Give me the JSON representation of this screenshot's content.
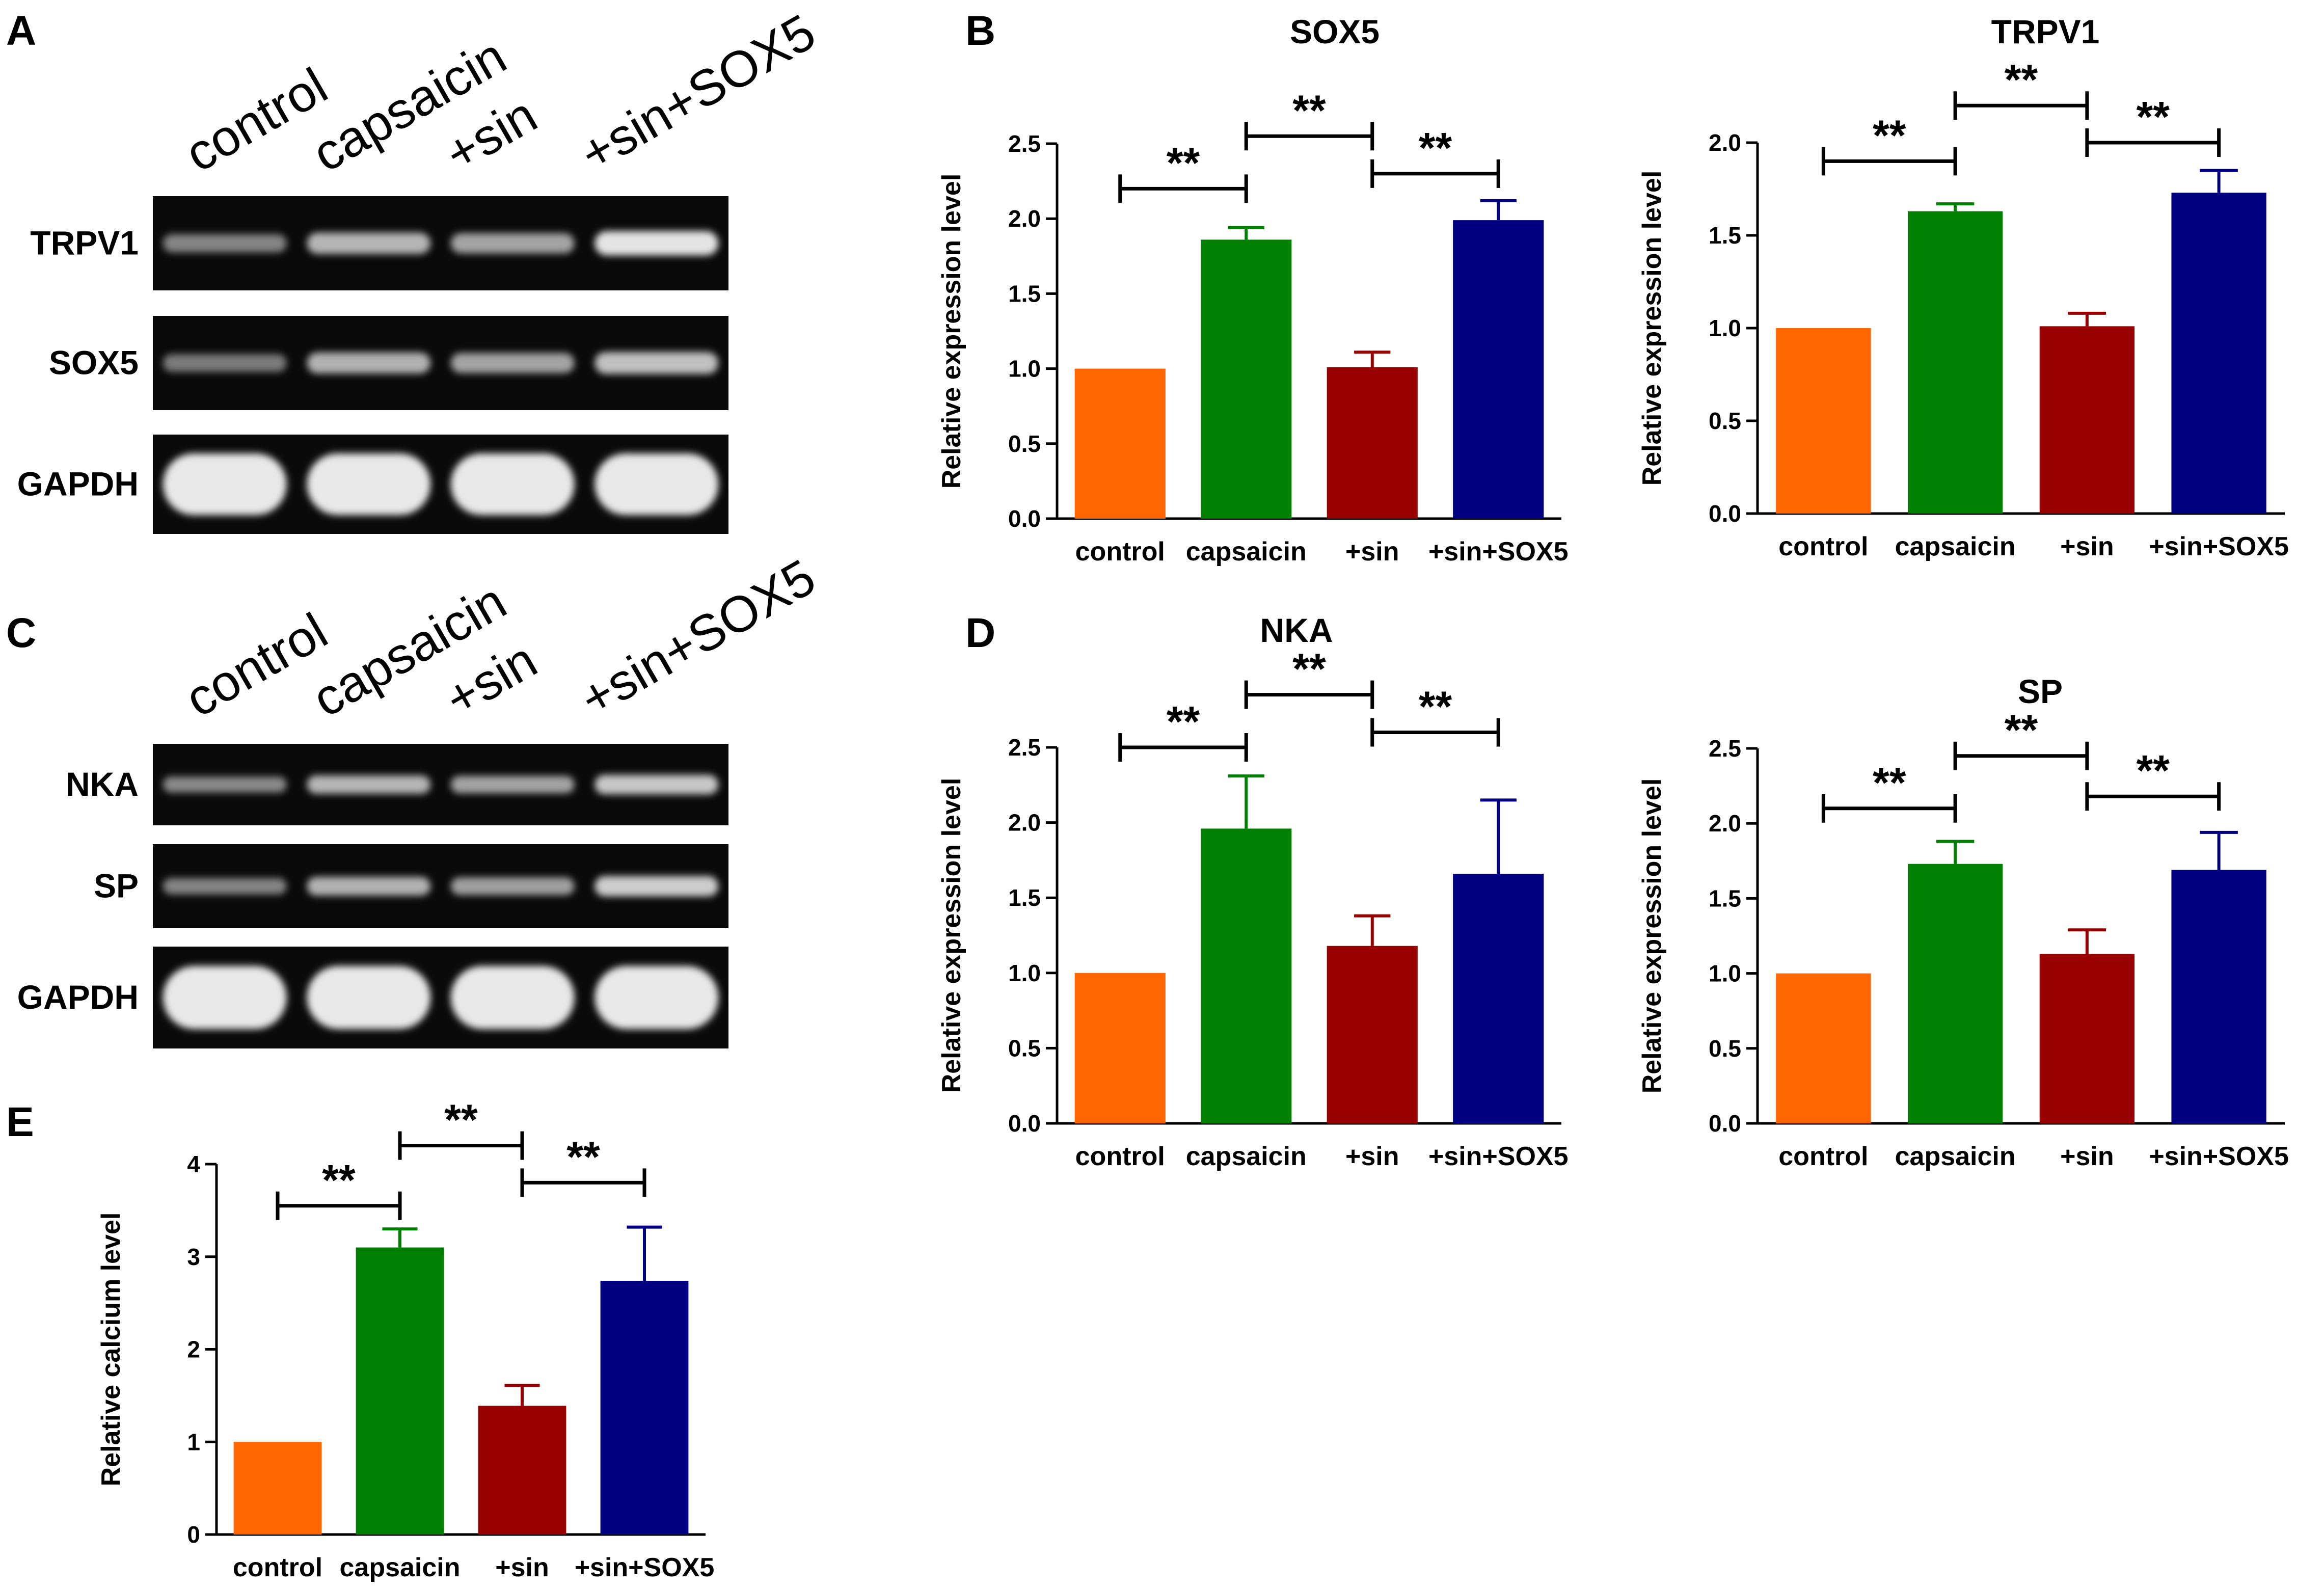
{
  "figure": {
    "panel_labels": [
      "A",
      "B",
      "C",
      "D",
      "E"
    ]
  },
  "colors": {
    "control": "#ff6600",
    "capsaicin": "#008000",
    "sin": "#990000",
    "sin_sox5": "#000080",
    "blot_background": "#0a0a0a",
    "band": "#e8e8e8"
  },
  "blots": [
    {
      "panel": "A",
      "lanes": [
        "control",
        "capsaicin",
        "+sin",
        "+sin+SOX5"
      ],
      "rows": [
        {
          "label": "TRPV1",
          "intensity": [
            0.45,
            0.72,
            0.62,
            0.98
          ]
        },
        {
          "label": "SOX5",
          "intensity": [
            0.4,
            0.7,
            0.62,
            0.78
          ]
        },
        {
          "label": "GAPDH",
          "intensity": [
            1.0,
            1.0,
            1.0,
            1.0
          ]
        }
      ]
    },
    {
      "panel": "C",
      "lanes": [
        "control",
        "capsaicin",
        "+sin",
        "+sin+SOX5"
      ],
      "rows": [
        {
          "label": "NKA",
          "intensity": [
            0.48,
            0.72,
            0.62,
            0.82
          ]
        },
        {
          "label": "SP",
          "intensity": [
            0.45,
            0.7,
            0.6,
            0.85
          ]
        },
        {
          "label": "GAPDH",
          "intensity": [
            1.0,
            1.0,
            1.0,
            1.0
          ]
        }
      ]
    }
  ],
  "chart_data": [
    {
      "panel": "B",
      "type": "bar",
      "title": "SOX5",
      "categories": [
        "control",
        "capsaicin",
        "+sin",
        "+sin+SOX5"
      ],
      "values": [
        1.0,
        1.86,
        1.01,
        1.99
      ],
      "errors": [
        0,
        0.08,
        0.1,
        0.13
      ],
      "ylabel": "Relative expression level",
      "ylim": [
        0,
        2.5
      ],
      "yticks": [
        "0.0",
        "0.5",
        "1.0",
        "1.5",
        "2.0",
        "2.5"
      ],
      "significance": [
        {
          "from": 0,
          "to": 1,
          "label": "**",
          "level": 2.2
        },
        {
          "from": 1,
          "to": 2,
          "label": "**",
          "level": 2.55
        },
        {
          "from": 2,
          "to": 3,
          "label": "**",
          "level": 2.3
        }
      ]
    },
    {
      "panel": "B",
      "type": "bar",
      "title": "TRPV1",
      "categories": [
        "control",
        "capsaicin",
        "+sin",
        "+sin+SOX5"
      ],
      "values": [
        1.0,
        1.63,
        1.01,
        1.73
      ],
      "errors": [
        0,
        0.04,
        0.07,
        0.12
      ],
      "ylabel": "Relative expression level",
      "ylim": [
        0,
        2.0
      ],
      "yticks": [
        "0.0",
        "0.5",
        "1.0",
        "1.5",
        "2.0"
      ],
      "significance": [
        {
          "from": 0,
          "to": 1,
          "label": "**",
          "level": 1.9
        },
        {
          "from": 1,
          "to": 2,
          "label": "**",
          "level": 2.2
        },
        {
          "from": 2,
          "to": 3,
          "label": "**",
          "level": 2.0
        }
      ]
    },
    {
      "panel": "D",
      "type": "bar",
      "title": "NKA",
      "categories": [
        "control",
        "capsaicin",
        "+sin",
        "+sin+SOX5"
      ],
      "values": [
        1.0,
        1.96,
        1.18,
        1.66
      ],
      "errors": [
        0,
        0.35,
        0.2,
        0.49
      ],
      "ylabel": "Relative expression level",
      "ylim": [
        0,
        2.5
      ],
      "yticks": [
        "0.0",
        "0.5",
        "1.0",
        "1.5",
        "2.0",
        "2.5"
      ],
      "significance": [
        {
          "from": 0,
          "to": 1,
          "label": "**",
          "level": 2.5
        },
        {
          "from": 1,
          "to": 2,
          "label": "**",
          "level": 2.85
        },
        {
          "from": 2,
          "to": 3,
          "label": "**",
          "level": 2.6
        }
      ]
    },
    {
      "panel": "D",
      "type": "bar",
      "title": "SP",
      "categories": [
        "control",
        "capsaicin",
        "+sin",
        "+sin+SOX5"
      ],
      "values": [
        1.0,
        1.73,
        1.13,
        1.69
      ],
      "errors": [
        0,
        0.15,
        0.16,
        0.25
      ],
      "ylabel": "Relative expression level",
      "ylim": [
        0,
        2.5
      ],
      "yticks": [
        "0.0",
        "0.5",
        "1.0",
        "1.5",
        "2.0",
        "2.5"
      ],
      "significance": [
        {
          "from": 0,
          "to": 1,
          "label": "**",
          "level": 2.1
        },
        {
          "from": 1,
          "to": 2,
          "label": "**",
          "level": 2.45
        },
        {
          "from": 2,
          "to": 3,
          "label": "**",
          "level": 2.18
        }
      ]
    },
    {
      "panel": "E",
      "type": "bar",
      "title": "",
      "categories": [
        "control",
        "capsaicin",
        "+sin",
        "+sin+SOX5"
      ],
      "values": [
        1.0,
        3.1,
        1.39,
        2.74
      ],
      "errors": [
        0,
        0.2,
        0.22,
        0.58
      ],
      "ylabel": "Relative calcium level",
      "ylim": [
        0,
        4
      ],
      "yticks": [
        "0",
        "1",
        "2",
        "3",
        "4"
      ],
      "significance": [
        {
          "from": 0,
          "to": 1,
          "label": "**",
          "level": 3.55
        },
        {
          "from": 1,
          "to": 2,
          "label": "**",
          "level": 4.2
        },
        {
          "from": 2,
          "to": 3,
          "label": "**",
          "level": 3.8
        }
      ]
    }
  ]
}
